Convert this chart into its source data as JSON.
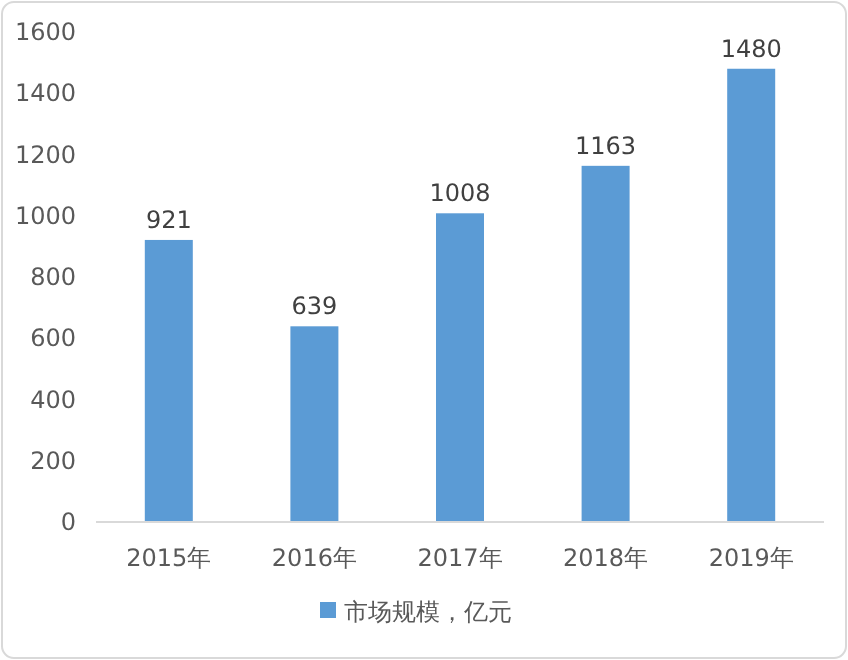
{
  "chart_data": {
    "type": "bar",
    "categories": [
      "2015年",
      "2016年",
      "2017年",
      "2018年",
      "2019年"
    ],
    "series": [
      {
        "name": "市场规模，亿元",
        "color": "#5b9bd5",
        "values": [
          921,
          639,
          1008,
          1163,
          1480
        ]
      }
    ],
    "ylim": [
      0,
      1600
    ],
    "yticks": [
      0,
      200,
      400,
      600,
      800,
      1000,
      1200,
      1400,
      1600
    ],
    "data_labels": true,
    "legend": "bottom",
    "grid": false
  }
}
